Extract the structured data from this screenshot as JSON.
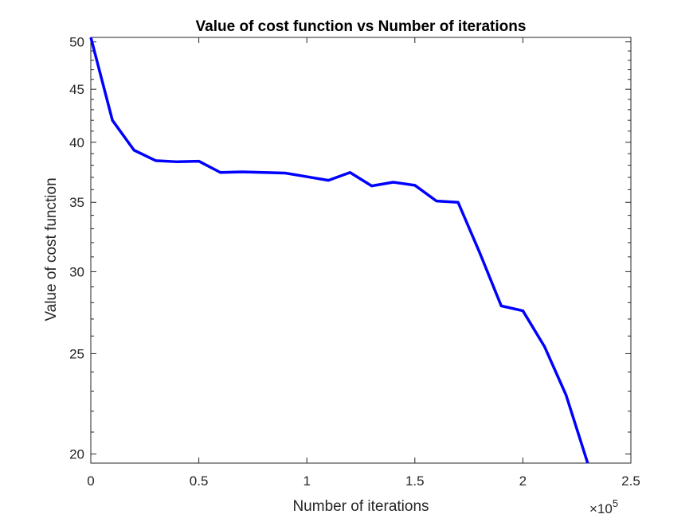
{
  "chart_data": {
    "type": "line",
    "title": "Value of cost function vs Number of iterations",
    "xlabel": "Number of iterations",
    "ylabel": "Value of cost function",
    "x_multiplier_label": "×10",
    "x_multiplier_exponent": "5",
    "x_scale": "linear",
    "y_scale": "log",
    "xlim": [
      0,
      250000
    ],
    "ylim": [
      19.6,
      50.5
    ],
    "x_ticks": [
      0,
      50000,
      100000,
      150000,
      200000,
      250000
    ],
    "x_tick_labels": [
      "0",
      "0.5",
      "1",
      "1.5",
      "2",
      "2.5"
    ],
    "y_ticks": [
      20,
      25,
      30,
      35,
      40,
      45,
      50
    ],
    "y_tick_labels": [
      "20",
      "25",
      "30",
      "35",
      "40",
      "45",
      "50"
    ],
    "grid": false,
    "legend": "none",
    "series": [
      {
        "color": "#0000ff",
        "x": [
          0,
          10000,
          20000,
          30000,
          40000,
          50000,
          60000,
          70000,
          80000,
          90000,
          100000,
          110000,
          120000,
          130000,
          140000,
          150000,
          160000,
          170000,
          180000,
          190000,
          200000,
          210000,
          220000,
          230000
        ],
        "y": [
          50.5,
          42.0,
          39.3,
          38.4,
          38.3,
          38.35,
          37.4,
          37.45,
          37.4,
          37.35,
          37.05,
          36.75,
          37.4,
          36.3,
          36.6,
          36.35,
          35.1,
          35.0,
          31.3,
          27.8,
          27.5,
          25.4,
          22.8,
          19.6
        ]
      }
    ]
  }
}
